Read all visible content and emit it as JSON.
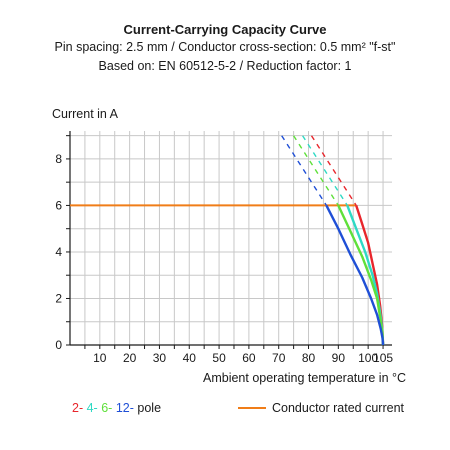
{
  "chart_data": {
    "type": "line",
    "title": "Current-Carrying Capacity Curve",
    "subtitle_1": "Pin spacing: 2.5 mm / Conductor cross-section: 0.5 mm² \"f-st\"",
    "subtitle_2": "Based on: EN 60512-5-2 / Reduction factor: 1",
    "ylabel": "Current in A",
    "xlabel": "Ambient operating temperature in °C",
    "xlim": [
      0,
      108
    ],
    "ylim": [
      0,
      9.2
    ],
    "x_ticks": [
      10,
      20,
      30,
      40,
      50,
      60,
      70,
      80,
      90,
      100,
      105
    ],
    "y_ticks": [
      0,
      2,
      4,
      6,
      8
    ],
    "grid": true,
    "series": [
      {
        "name": "2-pole",
        "color": "#e8262c",
        "solid": {
          "x": [
            96,
            98,
            100,
            101.5,
            103,
            104,
            104.7,
            105
          ],
          "y": [
            6.0,
            5.2,
            4.4,
            3.5,
            2.6,
            1.7,
            0.8,
            0.0
          ]
        },
        "dashed": {
          "x": [
            81,
            96
          ],
          "y": [
            9.0,
            6.0
          ]
        }
      },
      {
        "name": "4-pole",
        "color": "#2fd9c4",
        "solid": {
          "x": [
            93,
            96,
            99,
            101.5,
            103,
            104,
            104.7,
            105
          ],
          "y": [
            6.0,
            5.0,
            4.0,
            3.0,
            2.2,
            1.4,
            0.7,
            0.0
          ]
        },
        "dashed": {
          "x": [
            78,
            93
          ],
          "y": [
            9.0,
            6.0
          ]
        }
      },
      {
        "name": "6-pole",
        "color": "#5fe03a",
        "solid": {
          "x": [
            90,
            94,
            98,
            101,
            103,
            104,
            104.7,
            105
          ],
          "y": [
            6.0,
            4.9,
            3.8,
            2.8,
            2.0,
            1.2,
            0.6,
            0.0
          ]
        },
        "dashed": {
          "x": [
            75,
            90
          ],
          "y": [
            9.0,
            6.0
          ]
        }
      },
      {
        "name": "12-pole",
        "color": "#1f4fd6",
        "solid": {
          "x": [
            86,
            90,
            94,
            98,
            101,
            103,
            104.2,
            104.8,
            105
          ],
          "y": [
            6.0,
            5.0,
            3.9,
            2.9,
            2.0,
            1.3,
            0.7,
            0.3,
            0.0
          ]
        },
        "dashed": {
          "x": [
            71,
            86
          ],
          "y": [
            9.0,
            6.0
          ]
        }
      }
    ],
    "rated_current": {
      "name": "Conductor rated current",
      "value": 6,
      "x_end": 96,
      "color": "#f07d18"
    },
    "legend": {
      "poles": [
        {
          "text": "2-",
          "color": "#e8262c"
        },
        {
          "text": "4-",
          "color": "#2fd9c4"
        },
        {
          "text": "6-",
          "color": "#5fe03a"
        },
        {
          "text": "12-",
          "color": "#1f4fd6"
        }
      ],
      "pole_suffix": "pole",
      "rated_label": "Conductor rated current"
    }
  }
}
